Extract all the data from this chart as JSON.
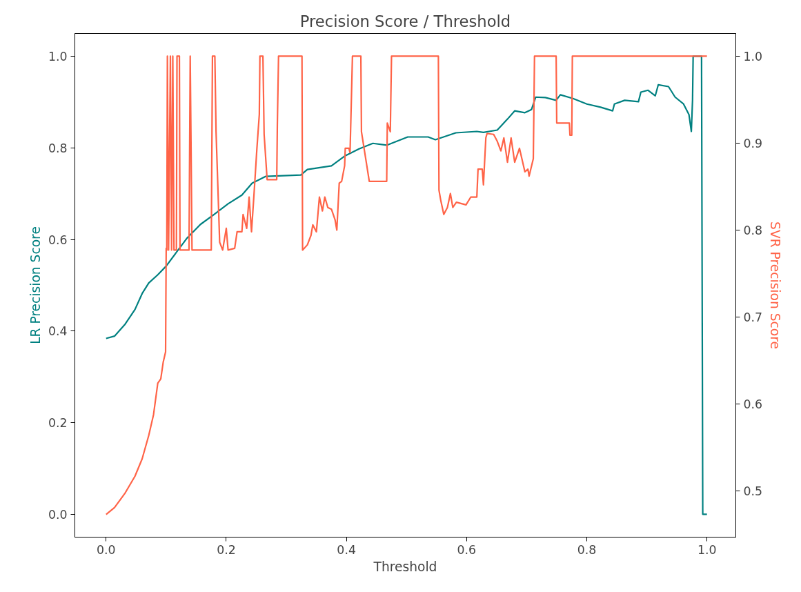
{
  "chart_data": {
    "type": "line",
    "title": "Precision Score / Threshold",
    "xlabel": "Threshold",
    "ylabel": "LR Precision Score",
    "y2label": "SVR Precision Score",
    "xlim": [
      -0.052,
      1.048
    ],
    "xticks": [
      {
        "value": 0,
        "label": "0.0"
      },
      0.2,
      0.4,
      0.6,
      0.8,
      {
        "value": 1,
        "label": "1.0"
      }
    ],
    "ylim": [
      -0.05,
      1.05
    ],
    "yticks": [
      {
        "value": 0,
        "label": "0.0"
      },
      0.2,
      0.4,
      0.6,
      0.8,
      {
        "value": 1,
        "label": "1.0"
      }
    ],
    "y2lim": [
      0.447,
      1.026
    ],
    "y2ticks": [
      0.5,
      0.6,
      0.7,
      0.8,
      0.9,
      {
        "value": 1,
        "label": "1.0"
      }
    ],
    "grid": false,
    "series": [
      {
        "color": "#008080",
        "x": [
          0,
          0.014,
          0.031,
          0.048,
          0.06,
          0.071,
          0.086,
          0.1,
          0.117,
          0.134,
          0.157,
          0.18,
          0.203,
          0.226,
          0.243,
          0.266,
          0.324,
          0.335,
          0.375,
          0.398,
          0.421,
          0.444,
          0.467,
          0.502,
          0.536,
          0.548,
          0.582,
          0.617,
          0.628,
          0.651,
          0.668,
          0.68,
          0.697,
          0.708,
          0.715,
          0.731,
          0.749,
          0.756,
          0.777,
          0.8,
          0.823,
          0.843,
          0.846,
          0.863,
          0.886,
          0.89,
          0.902,
          0.914,
          0.919,
          0.936,
          0.947,
          0.961,
          0.97,
          0.974,
          0.976,
          0.977,
          0.991,
          0.993,
          1.0
        ],
        "values": [
          0.384,
          0.389,
          0.414,
          0.447,
          0.482,
          0.505,
          0.523,
          0.542,
          0.572,
          0.602,
          0.633,
          0.655,
          0.678,
          0.697,
          0.723,
          0.738,
          0.741,
          0.753,
          0.761,
          0.783,
          0.798,
          0.81,
          0.806,
          0.824,
          0.824,
          0.818,
          0.833,
          0.836,
          0.834,
          0.839,
          0.863,
          0.881,
          0.877,
          0.884,
          0.911,
          0.91,
          0.904,
          0.916,
          0.908,
          0.896,
          0.889,
          0.881,
          0.896,
          0.904,
          0.901,
          0.922,
          0.926,
          0.914,
          0.938,
          0.934,
          0.911,
          0.896,
          0.873,
          0.836,
          0.904,
          1.0,
          1.0,
          0.0,
          0.0
        ]
      },
      {
        "color": "#ff6347",
        "axis": "y2",
        "x": [
          0,
          0.014,
          0.031,
          0.048,
          0.06,
          0.071,
          0.079,
          0.086,
          0.091,
          0.095,
          0.099,
          0.1,
          0.101,
          0.102,
          0.104,
          0.107,
          0.109,
          0.111,
          0.113,
          0.117,
          0.118,
          0.122,
          0.123,
          0.138,
          0.14,
          0.143,
          0.175,
          0.177,
          0.181,
          0.183,
          0.186,
          0.189,
          0.194,
          0.2,
          0.203,
          0.214,
          0.218,
          0.226,
          0.228,
          0.234,
          0.238,
          0.242,
          0.247,
          0.251,
          0.255,
          0.256,
          0.261,
          0.263,
          0.268,
          0.284,
          0.285,
          0.287,
          0.326,
          0.327,
          0.335,
          0.341,
          0.344,
          0.35,
          0.355,
          0.36,
          0.364,
          0.369,
          0.375,
          0.381,
          0.384,
          0.388,
          0.392,
          0.397,
          0.398,
          0.404,
          0.406,
          0.41,
          0.424,
          0.425,
          0.433,
          0.438,
          0.467,
          0.468,
          0.473,
          0.475,
          0.553,
          0.554,
          0.557,
          0.562,
          0.568,
          0.573,
          0.577,
          0.583,
          0.599,
          0.607,
          0.617,
          0.619,
          0.626,
          0.628,
          0.632,
          0.634,
          0.645,
          0.651,
          0.657,
          0.662,
          0.668,
          0.674,
          0.68,
          0.688,
          0.697,
          0.702,
          0.704,
          0.711,
          0.713,
          0.749,
          0.75,
          0.771,
          0.772,
          0.775,
          0.776,
          1.0
        ],
        "values": [
          0.473,
          0.481,
          0.497,
          0.517,
          0.537,
          0.564,
          0.588,
          0.624,
          0.629,
          0.648,
          0.66,
          0.779,
          0.777,
          1.0,
          0.777,
          1.0,
          0.777,
          1.0,
          0.777,
          0.777,
          1.0,
          1.0,
          0.777,
          0.777,
          1.0,
          0.777,
          0.777,
          1.0,
          1.0,
          0.913,
          0.85,
          0.786,
          0.777,
          0.802,
          0.777,
          0.779,
          0.798,
          0.798,
          0.818,
          0.802,
          0.838,
          0.798,
          0.85,
          0.894,
          0.933,
          1.0,
          1.0,
          0.91,
          0.858,
          0.858,
          0.921,
          1.0,
          1.0,
          0.777,
          0.783,
          0.794,
          0.806,
          0.798,
          0.838,
          0.822,
          0.838,
          0.826,
          0.824,
          0.812,
          0.8,
          0.854,
          0.856,
          0.874,
          0.894,
          0.894,
          0.889,
          1.0,
          1.0,
          0.913,
          0.878,
          0.856,
          0.856,
          0.923,
          0.913,
          1.0,
          1.0,
          0.846,
          0.834,
          0.818,
          0.826,
          0.842,
          0.826,
          0.832,
          0.829,
          0.838,
          0.838,
          0.87,
          0.87,
          0.852,
          0.906,
          0.911,
          0.91,
          0.902,
          0.891,
          0.906,
          0.878,
          0.906,
          0.878,
          0.894,
          0.867,
          0.87,
          0.862,
          0.882,
          1.0,
          1.0,
          0.923,
          0.923,
          0.909,
          0.909,
          1.0,
          1.0
        ]
      }
    ]
  }
}
